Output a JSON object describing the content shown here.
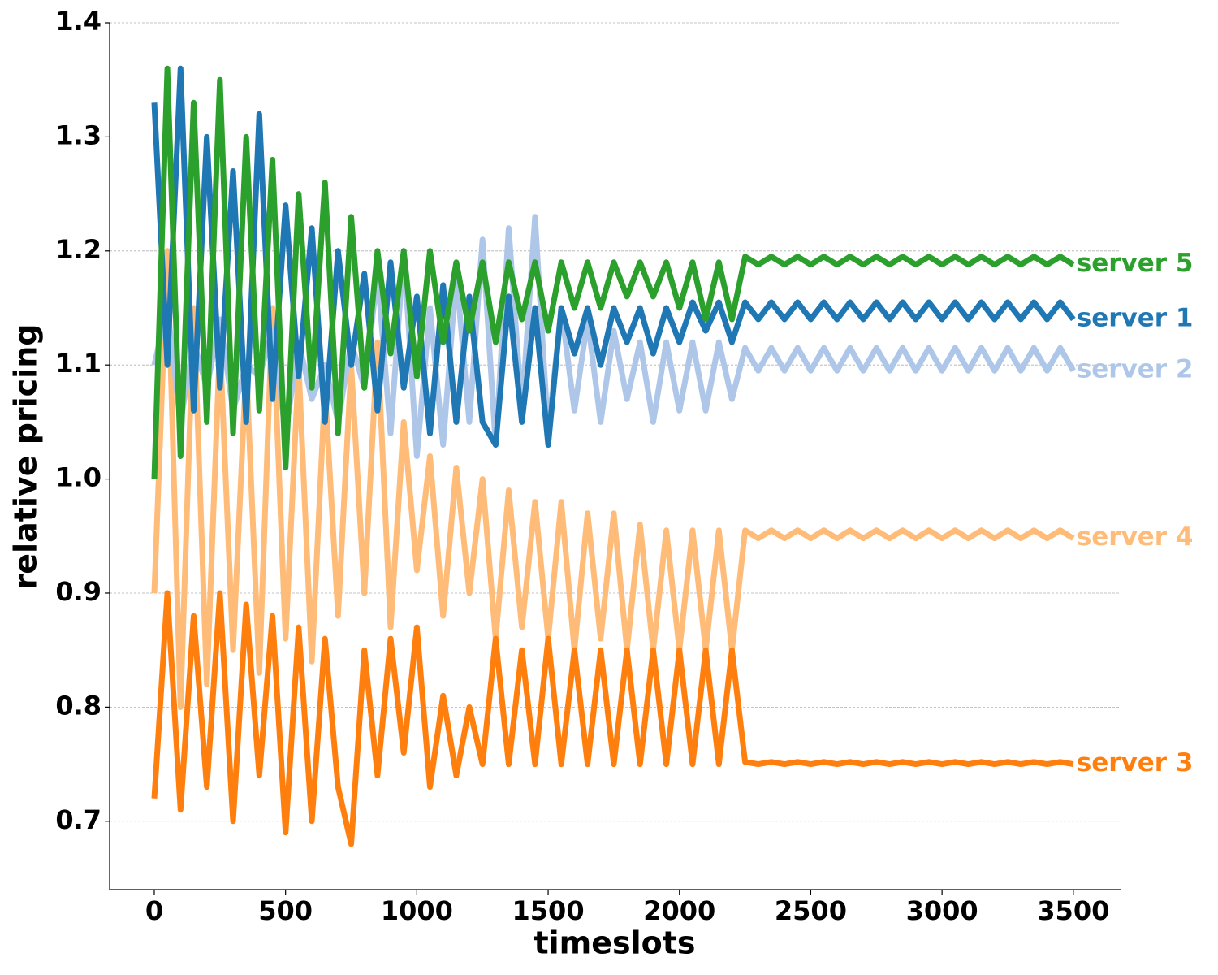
{
  "chart_data": {
    "type": "line",
    "x_label": "timeslots",
    "y_label": "relative pricing",
    "x": [
      0,
      50,
      100,
      150,
      200,
      250,
      300,
      350,
      400,
      450,
      500,
      550,
      600,
      650,
      700,
      750,
      800,
      850,
      900,
      950,
      1000,
      1050,
      1100,
      1150,
      1200,
      1250,
      1300,
      1350,
      1400,
      1450,
      1500,
      1550,
      1600,
      1650,
      1700,
      1750,
      1800,
      1850,
      1900,
      1950,
      2000,
      2050,
      2100,
      2150,
      2200,
      2250,
      2300,
      2350,
      2400,
      2450,
      2500,
      2550,
      2600,
      2650,
      2700,
      2750,
      2800,
      2850,
      2900,
      2950,
      3000,
      3050,
      3100,
      3150,
      3200,
      3250,
      3300,
      3350,
      3400,
      3450,
      3500
    ],
    "series": [
      {
        "name": "server 4",
        "color": "#ffbb78",
        "values": [
          0.9,
          1.2,
          0.8,
          1.15,
          0.82,
          1.12,
          0.85,
          1.1,
          0.83,
          1.15,
          0.86,
          1.1,
          0.84,
          1.08,
          0.88,
          1.1,
          0.9,
          1.12,
          0.87,
          1.05,
          0.92,
          1.02,
          0.88,
          1.01,
          0.9,
          1.0,
          0.86,
          0.99,
          0.87,
          0.98,
          0.86,
          0.98,
          0.85,
          0.97,
          0.86,
          0.97,
          0.85,
          0.96,
          0.85,
          0.955,
          0.85,
          0.955,
          0.85,
          0.955,
          0.85,
          0.955,
          0.948,
          0.955,
          0.948,
          0.955,
          0.948,
          0.955,
          0.948,
          0.955,
          0.948,
          0.955,
          0.948,
          0.955,
          0.948,
          0.955,
          0.948,
          0.955,
          0.948,
          0.955,
          0.948,
          0.955,
          0.948,
          0.955,
          0.948,
          0.955,
          0.948
        ]
      },
      {
        "name": "server 3",
        "color": "#ff7f0e",
        "values": [
          0.72,
          0.9,
          0.71,
          0.88,
          0.73,
          0.9,
          0.7,
          0.89,
          0.74,
          0.88,
          0.69,
          0.87,
          0.7,
          0.86,
          0.73,
          0.68,
          0.85,
          0.74,
          0.86,
          0.76,
          0.87,
          0.73,
          0.81,
          0.74,
          0.8,
          0.75,
          0.86,
          0.75,
          0.85,
          0.75,
          0.86,
          0.75,
          0.85,
          0.75,
          0.85,
          0.75,
          0.85,
          0.75,
          0.85,
          0.75,
          0.85,
          0.75,
          0.85,
          0.75,
          0.85,
          0.752,
          0.75,
          0.752,
          0.75,
          0.752,
          0.75,
          0.752,
          0.75,
          0.752,
          0.75,
          0.752,
          0.75,
          0.752,
          0.75,
          0.752,
          0.75,
          0.752,
          0.75,
          0.752,
          0.75,
          0.752,
          0.75,
          0.752,
          0.75,
          0.752,
          0.75
        ]
      },
      {
        "name": "server 2",
        "color": "#aec7e8",
        "values": [
          1.1,
          1.15,
          1.05,
          1.12,
          1.08,
          1.14,
          1.06,
          1.1,
          1.09,
          1.13,
          1.04,
          1.12,
          1.07,
          1.1,
          1.05,
          1.12,
          1.08,
          1.18,
          1.04,
          1.2,
          1.02,
          1.15,
          1.03,
          1.18,
          1.05,
          1.21,
          1.03,
          1.22,
          1.06,
          1.23,
          1.04,
          1.15,
          1.06,
          1.14,
          1.05,
          1.13,
          1.07,
          1.12,
          1.05,
          1.12,
          1.06,
          1.12,
          1.06,
          1.12,
          1.07,
          1.115,
          1.095,
          1.115,
          1.095,
          1.115,
          1.095,
          1.115,
          1.095,
          1.115,
          1.095,
          1.115,
          1.095,
          1.115,
          1.095,
          1.115,
          1.095,
          1.115,
          1.095,
          1.115,
          1.095,
          1.115,
          1.095,
          1.115,
          1.095,
          1.115,
          1.095
        ]
      },
      {
        "name": "server 1",
        "color": "#1f77b4",
        "values": [
          1.33,
          1.1,
          1.36,
          1.06,
          1.3,
          1.08,
          1.27,
          1.05,
          1.32,
          1.07,
          1.24,
          1.09,
          1.22,
          1.05,
          1.2,
          1.1,
          1.18,
          1.06,
          1.19,
          1.08,
          1.16,
          1.04,
          1.17,
          1.05,
          1.16,
          1.05,
          1.03,
          1.16,
          1.05,
          1.15,
          1.03,
          1.15,
          1.11,
          1.15,
          1.1,
          1.15,
          1.12,
          1.15,
          1.11,
          1.15,
          1.12,
          1.155,
          1.13,
          1.155,
          1.12,
          1.155,
          1.14,
          1.155,
          1.14,
          1.155,
          1.14,
          1.155,
          1.14,
          1.155,
          1.14,
          1.155,
          1.14,
          1.155,
          1.14,
          1.155,
          1.14,
          1.155,
          1.14,
          1.155,
          1.14,
          1.155,
          1.14,
          1.155,
          1.14,
          1.155,
          1.14
        ]
      },
      {
        "name": "server 5",
        "color": "#2ca02c",
        "values": [
          1.0,
          1.36,
          1.02,
          1.33,
          1.05,
          1.35,
          1.04,
          1.3,
          1.06,
          1.28,
          1.01,
          1.25,
          1.08,
          1.26,
          1.04,
          1.23,
          1.08,
          1.2,
          1.11,
          1.2,
          1.09,
          1.2,
          1.12,
          1.19,
          1.13,
          1.19,
          1.12,
          1.19,
          1.14,
          1.19,
          1.13,
          1.19,
          1.15,
          1.19,
          1.15,
          1.19,
          1.16,
          1.19,
          1.16,
          1.19,
          1.15,
          1.19,
          1.14,
          1.19,
          1.14,
          1.195,
          1.188,
          1.195,
          1.188,
          1.195,
          1.188,
          1.195,
          1.188,
          1.195,
          1.188,
          1.195,
          1.188,
          1.195,
          1.188,
          1.195,
          1.188,
          1.195,
          1.188,
          1.195,
          1.188,
          1.195,
          1.188,
          1.195,
          1.188,
          1.195,
          1.188
        ]
      }
    ],
    "xlim": [
      -170,
      3683
    ],
    "xticks": [
      0,
      500,
      1000,
      1500,
      2000,
      2500,
      3000,
      3500
    ],
    "ylim": [
      0.64,
      1.4
    ],
    "yticks": [
      0.7,
      0.8,
      0.9,
      {
        "value": 1,
        "label": "1.0"
      },
      1.1,
      1.2,
      1.3,
      1.4
    ],
    "grid": true
  }
}
